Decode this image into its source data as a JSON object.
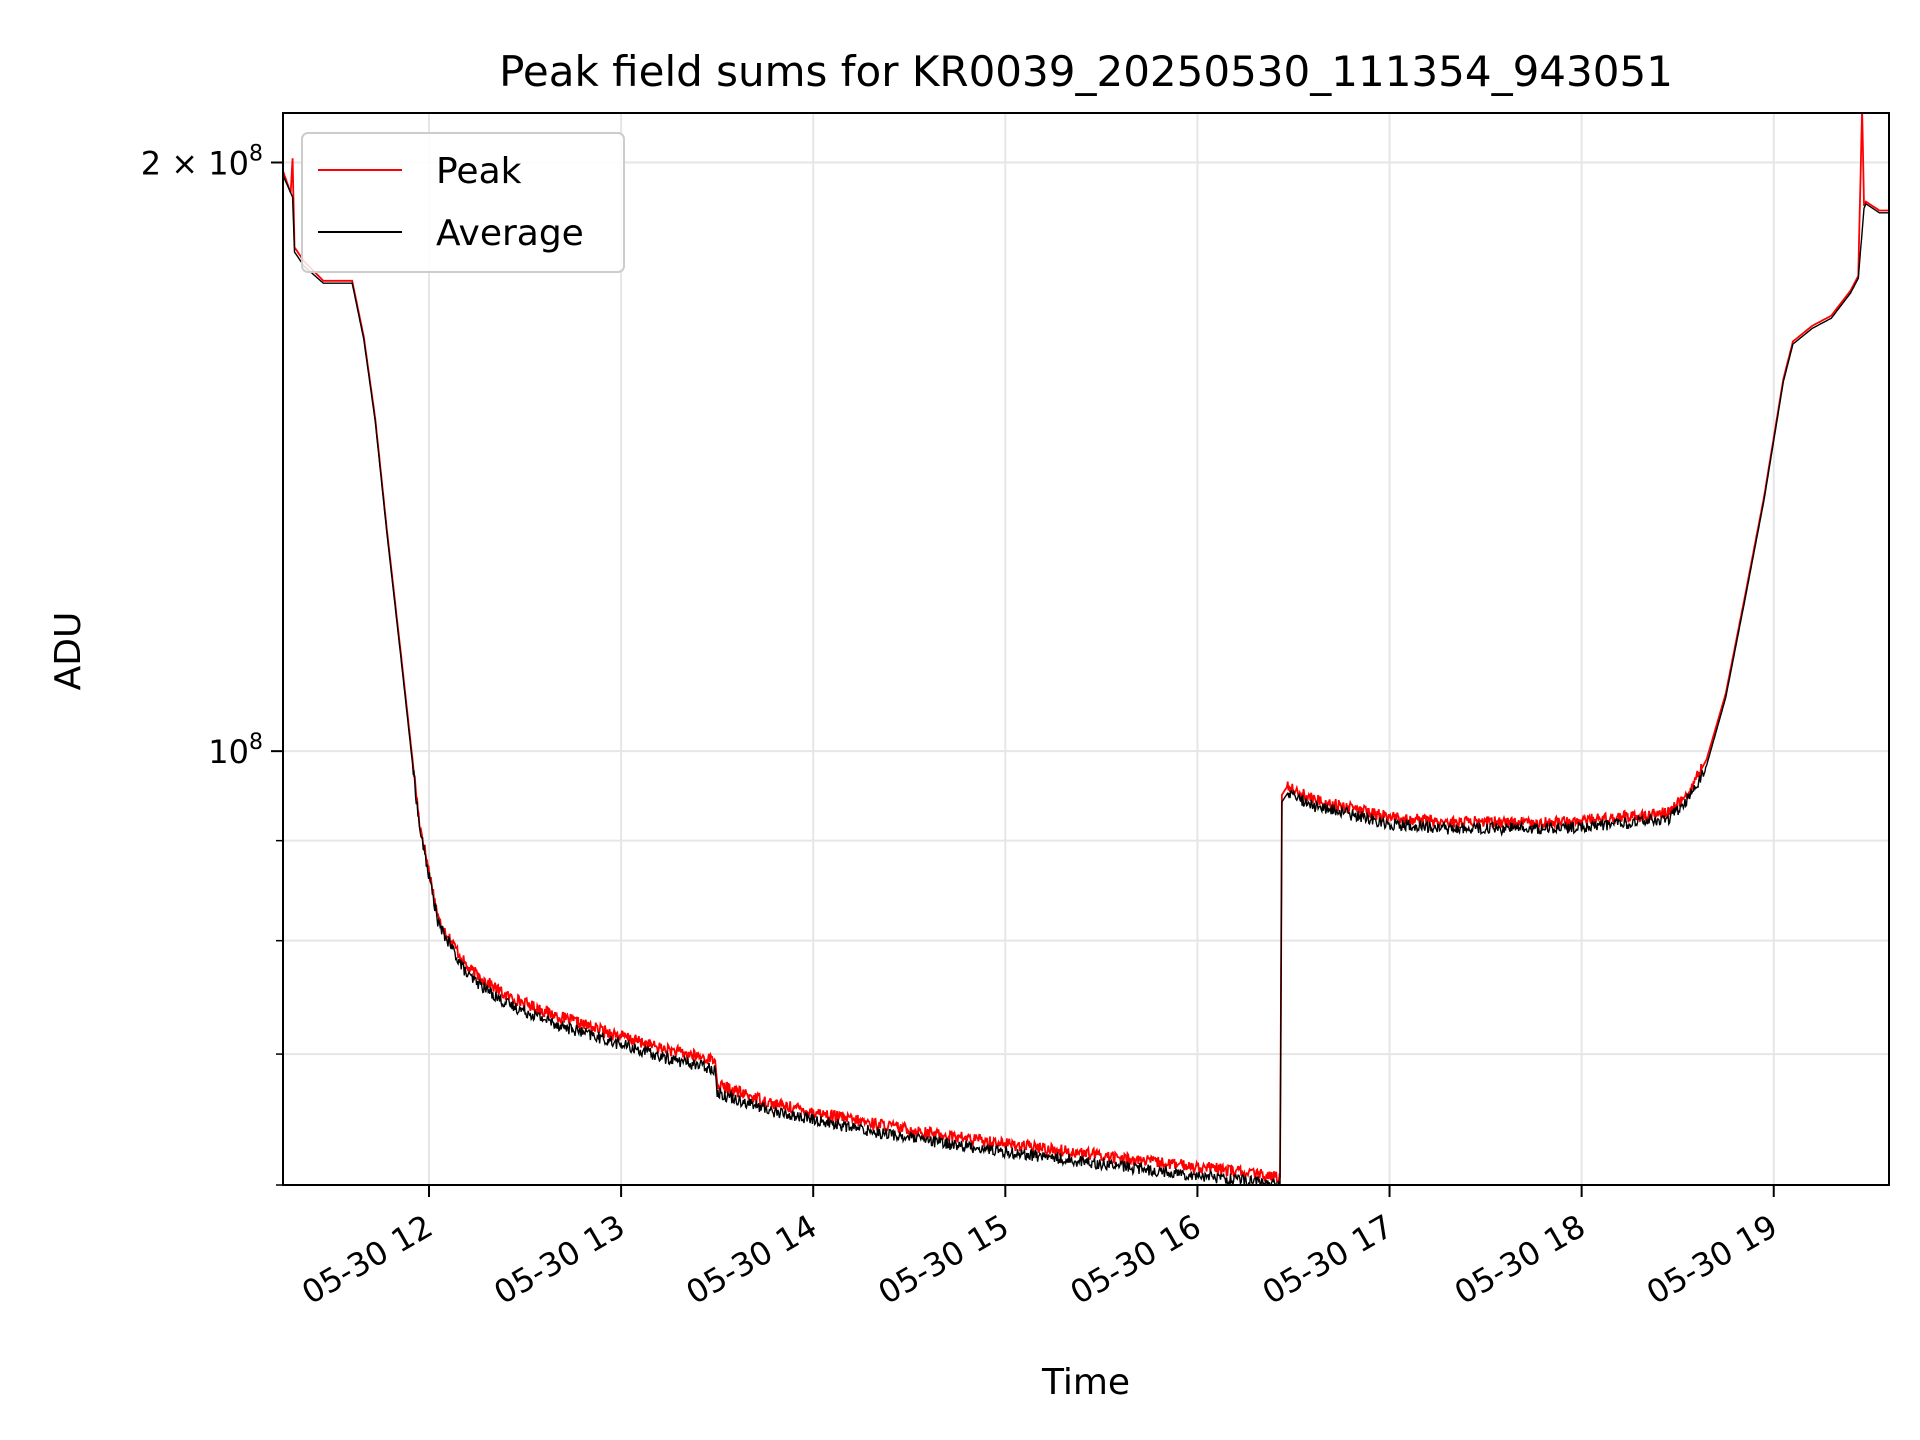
{
  "chart_data": {
    "type": "line",
    "title": "Peak field sums for KR0039_20250530_111354_943051",
    "xlabel": "Time",
    "ylabel": "ADU",
    "x_range": [
      11.24,
      19.6
    ],
    "y_scale": "log",
    "y_range": [
      60000000,
      212000000
    ],
    "x_ticks": [
      {
        "value": 12,
        "label": "05-30 12"
      },
      {
        "value": 13,
        "label": "05-30 13"
      },
      {
        "value": 14,
        "label": "05-30 14"
      },
      {
        "value": 15,
        "label": "05-30 15"
      },
      {
        "value": 16,
        "label": "05-30 16"
      },
      {
        "value": 17,
        "label": "05-30 17"
      },
      {
        "value": 18,
        "label": "05-30 18"
      },
      {
        "value": 19,
        "label": "05-30 19"
      }
    ],
    "y_major_ticks": [
      {
        "value": 100000000,
        "base": "10",
        "exp": "8",
        "mult": ""
      },
      {
        "value": 200000000,
        "base": "10",
        "exp": "8",
        "mult": "2 × "
      }
    ],
    "y_minor_ticks": [
      60000000,
      70000000,
      80000000,
      90000000
    ],
    "grid": true,
    "legend": {
      "placement": "upper-left"
    },
    "series": [
      {
        "name": "Peak",
        "color": "#ff0000",
        "x": [
          11.24,
          11.28,
          11.29,
          11.3,
          11.35,
          11.45,
          11.6,
          11.66,
          11.72,
          11.78,
          11.85,
          11.95,
          12.05,
          12.2,
          12.4,
          12.7,
          13.0,
          13.2,
          13.49,
          13.5,
          13.8,
          14.2,
          14.6,
          15.0,
          15.4,
          15.8,
          16.2,
          16.43,
          16.44,
          16.47,
          16.6,
          16.8,
          17.0,
          17.3,
          17.6,
          17.9,
          18.2,
          18.45,
          18.55,
          18.65,
          18.75,
          18.85,
          18.95,
          19.05,
          19.1,
          19.2,
          19.3,
          19.4,
          19.44,
          19.46,
          19.47,
          19.48,
          19.55,
          19.6
        ],
        "y": [
          198000000,
          193000000,
          201000000,
          181000000,
          178000000,
          174000000,
          174000000,
          163000000,
          148000000,
          130000000,
          113000000,
          92000000,
          82000000,
          77500000,
          75000000,
          73000000,
          71500000,
          70500000,
          69500000,
          67500000,
          66000000,
          64800000,
          63800000,
          63000000,
          62300000,
          61600000,
          61000000,
          60500000,
          95000000,
          96000000,
          94500000,
          93500000,
          92500000,
          92000000,
          92000000,
          92000000,
          92500000,
          93000000,
          95000000,
          99000000,
          107000000,
          120000000,
          135000000,
          155000000,
          162000000,
          165000000,
          167000000,
          172000000,
          175000000,
          213000000,
          190000000,
          191000000,
          189000000,
          189000000
        ]
      },
      {
        "name": "Average",
        "color": "#000000",
        "x": [
          11.24,
          11.29,
          11.3,
          11.35,
          11.45,
          11.6,
          11.66,
          11.72,
          11.78,
          11.85,
          11.95,
          12.05,
          12.2,
          12.4,
          12.7,
          13.0,
          13.2,
          13.49,
          13.5,
          13.8,
          14.2,
          14.6,
          15.0,
          15.4,
          15.8,
          16.2,
          16.43,
          16.44,
          16.47,
          16.6,
          16.8,
          17.0,
          17.3,
          17.6,
          17.9,
          18.2,
          18.45,
          18.55,
          18.65,
          18.75,
          18.85,
          18.95,
          19.05,
          19.1,
          19.2,
          19.3,
          19.4,
          19.44,
          19.47,
          19.48,
          19.55,
          19.6
        ],
        "y": [
          197000000,
          192000000,
          180000000,
          177000000,
          173500000,
          173500000,
          162500000,
          147500000,
          129500000,
          112500000,
          91500000,
          81500000,
          76800000,
          74300000,
          72300000,
          70800000,
          69800000,
          68800000,
          66900000,
          65400000,
          64200000,
          63200000,
          62400000,
          61700000,
          61000000,
          60400000,
          60000000,
          94200000,
          95200000,
          93800000,
          92800000,
          91800000,
          91300000,
          91300000,
          91300000,
          91800000,
          92300000,
          94300000,
          98300000,
          106500000,
          119500000,
          134500000,
          154500000,
          161500000,
          164500000,
          166500000,
          171500000,
          174500000,
          189500000,
          190500000,
          188500000,
          188500000
        ]
      }
    ]
  }
}
